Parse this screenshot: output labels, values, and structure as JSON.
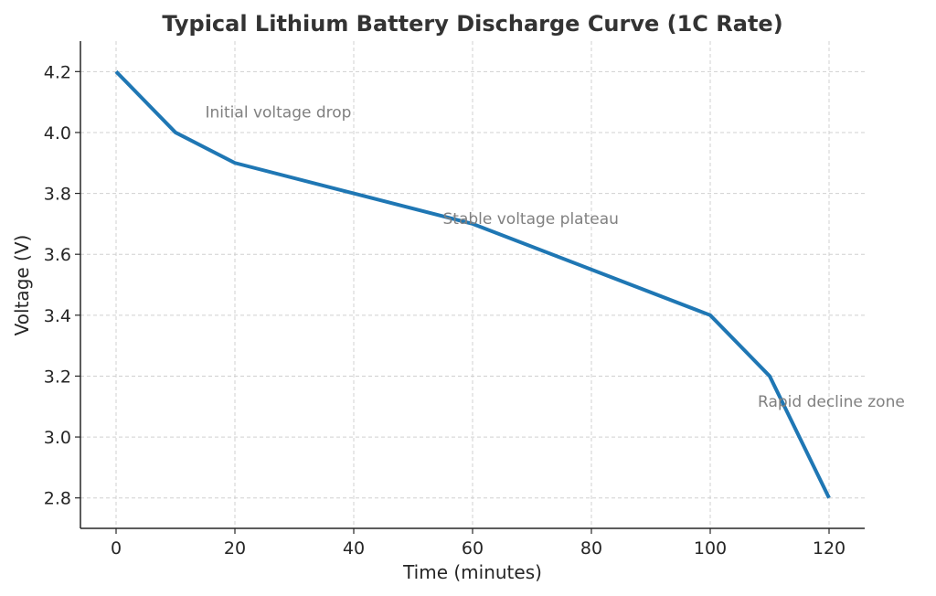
{
  "chart_data": {
    "type": "line",
    "title": "Typical Lithium Battery Discharge Curve (1C Rate)",
    "xlabel": "Time (minutes)",
    "ylabel": "Voltage (V)",
    "xlim": [
      -6,
      126
    ],
    "ylim": [
      2.7,
      4.3
    ],
    "xticks": [
      0,
      20,
      40,
      60,
      80,
      100,
      120
    ],
    "yticks": [
      2.8,
      3.0,
      3.2,
      3.4,
      3.6,
      3.8,
      4.0,
      4.2
    ],
    "grid": true,
    "series": [
      {
        "color": "#1f77b4",
        "x": [
          0,
          10,
          20,
          40,
          60,
          80,
          100,
          110,
          120
        ],
        "y": [
          4.2,
          4.0,
          3.9,
          3.8,
          3.7,
          3.55,
          3.4,
          3.2,
          2.8
        ]
      }
    ],
    "annotations": [
      {
        "text": "Initial voltage drop",
        "x": 15,
        "y": 4.05
      },
      {
        "text": "Stable voltage plateau",
        "x": 55,
        "y": 3.7
      },
      {
        "text": "Rapid decline zone",
        "x": 108,
        "y": 3.1
      }
    ]
  }
}
